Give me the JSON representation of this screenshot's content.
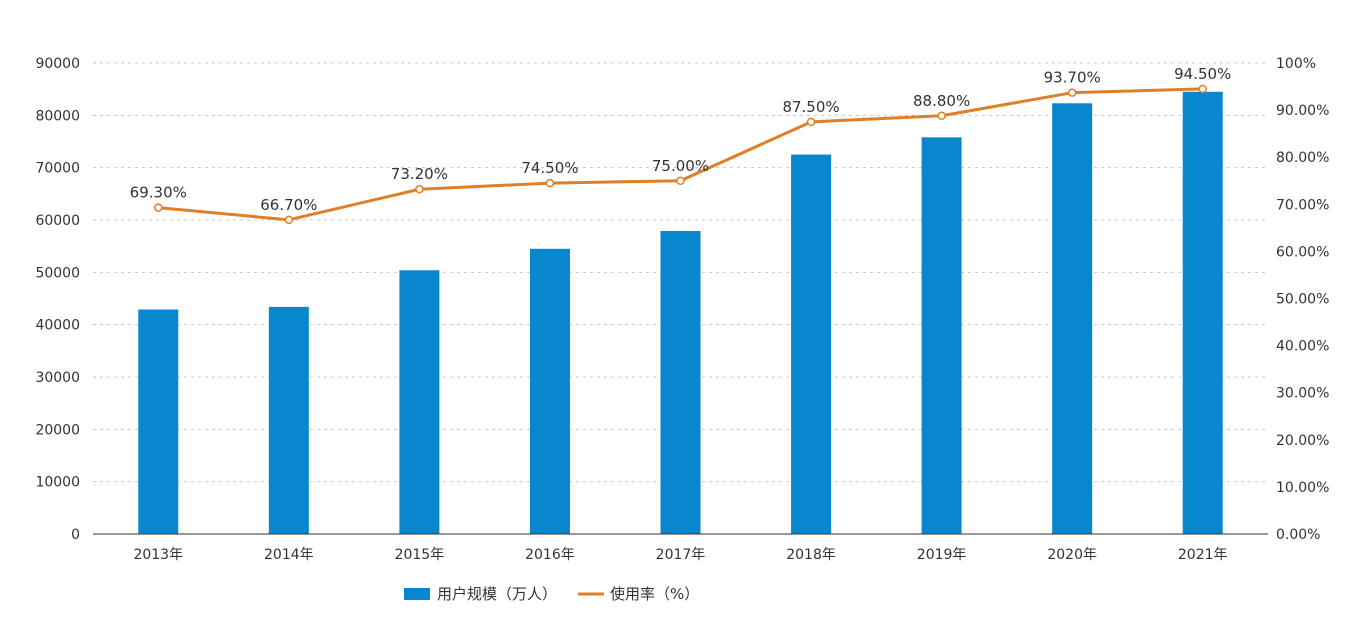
{
  "chart_data": {
    "type": "bar",
    "categories": [
      "2013年",
      "2014年",
      "2015年",
      "2016年",
      "2017年",
      "2018年",
      "2019年",
      "2020年",
      "2021年"
    ],
    "series": [
      {
        "name": "用户规模（万人）",
        "type": "bar",
        "axis": "left",
        "color": "#0887cf",
        "values": [
          42900,
          43400,
          50400,
          54500,
          57900,
          72500,
          75800,
          82300,
          84500
        ]
      },
      {
        "name": "使用率（%）",
        "type": "line",
        "axis": "right",
        "color": "#e07f26",
        "values": [
          69.3,
          66.7,
          73.2,
          74.5,
          75.0,
          87.5,
          88.8,
          93.7,
          94.5
        ],
        "data_labels": [
          "69.30%",
          "66.70%",
          "73.20%",
          "74.50%",
          "75.00%",
          "87.50%",
          "88.80%",
          "93.70%",
          "94.50%"
        ]
      }
    ],
    "y_left": {
      "range": [
        0,
        90000
      ],
      "ticks": [
        "0",
        "10000",
        "20000",
        "30000",
        "40000",
        "50000",
        "60000",
        "70000",
        "80000",
        "90000"
      ]
    },
    "y_right": {
      "range": [
        0,
        100
      ],
      "ticks": [
        "0.00%",
        "10.00%",
        "20.00%",
        "30.00%",
        "40.00%",
        "50.00%",
        "60.00%",
        "70.00%",
        "80.00%",
        "90.00%",
        "100%"
      ]
    },
    "grid": "horizontal-dashed",
    "legend_position": "bottom-center"
  }
}
